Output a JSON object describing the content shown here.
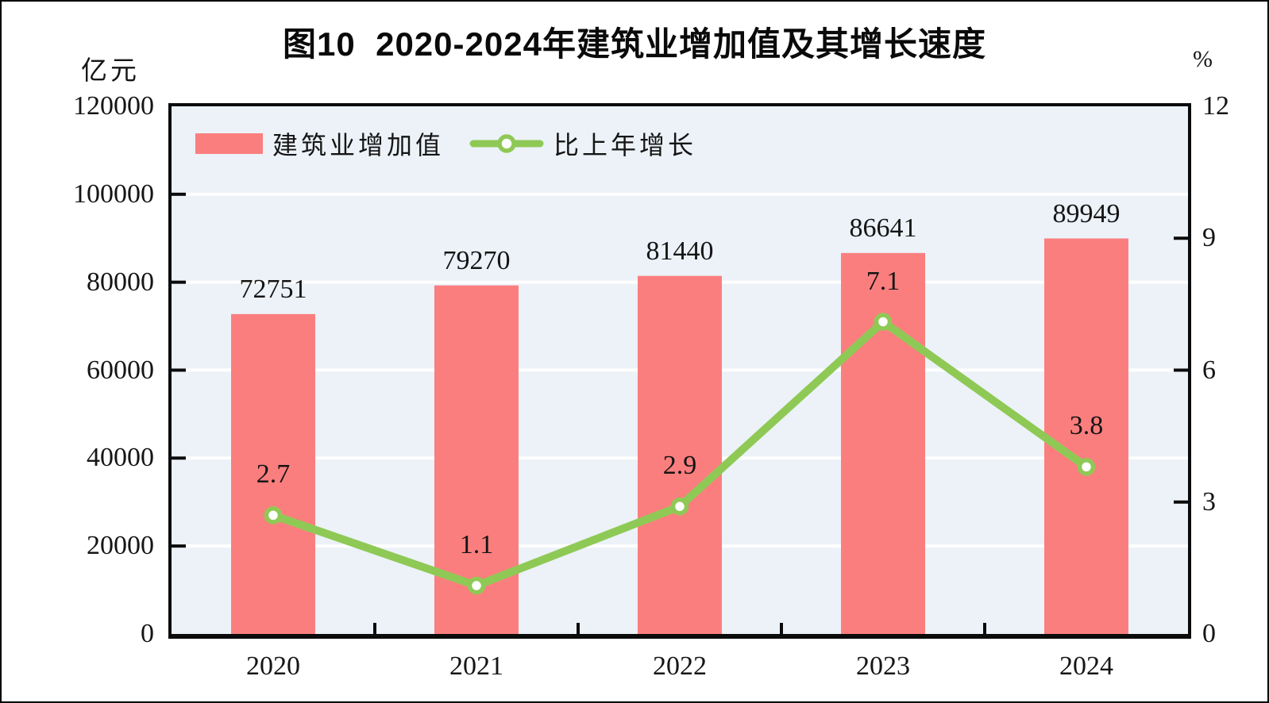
{
  "title": "图10  2020-2024年建筑业增加值及其增长速度",
  "colors": {
    "bar": "#FB7E7E",
    "line": "#8FC955",
    "marker_fill": "#FFFFFF",
    "plot_bg": "#ECF2F8",
    "grid": "#FFFFFF",
    "axis": "#0B0B0B",
    "text": "#151515"
  },
  "chart_data": {
    "type": "bar",
    "title": "图10  2020-2024年建筑业增加值及其增长速度",
    "categories": [
      "2020",
      "2021",
      "2022",
      "2023",
      "2024"
    ],
    "series": [
      {
        "name": "建筑业增加值",
        "type": "bar",
        "axis": "left",
        "values": [
          72751,
          79270,
          81440,
          86641,
          89949
        ],
        "color": "#FB7E7E"
      },
      {
        "name": "比上年增长",
        "type": "line",
        "axis": "right",
        "values": [
          2.7,
          1.1,
          2.9,
          7.1,
          3.8
        ],
        "color": "#8FC955"
      }
    ],
    "left_axis": {
      "unit": "亿元",
      "min": 0,
      "max": 120000,
      "ticks": [
        0,
        20000,
        40000,
        60000,
        80000,
        100000,
        120000
      ]
    },
    "right_axis": {
      "unit": "%",
      "min": 0,
      "max": 12,
      "ticks": [
        0,
        3,
        6,
        9,
        12
      ]
    },
    "grid": "horizontal",
    "legend_position": "top-left-inside",
    "data_labels": "shown"
  }
}
